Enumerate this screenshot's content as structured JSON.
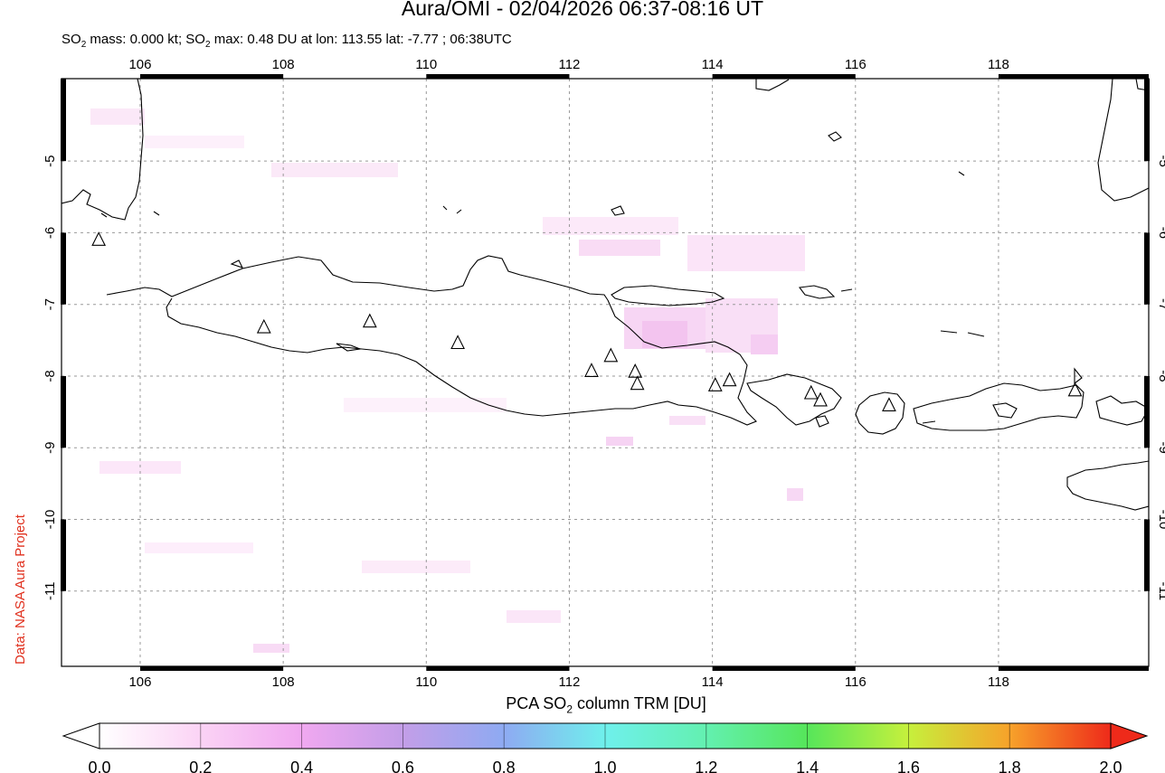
{
  "header": {
    "title": "Aura/OMI - 02/04/2026 06:37-08:16 UT",
    "subtitle_parts": {
      "so2": "SO",
      "sub2": "2",
      "mass_text": " mass: 0.000 kt; SO",
      "sub2b": "2",
      "max_text": " max: 0.48 DU at lon: 113.55 lat: -7.77 ; 06:38UTC"
    }
  },
  "credit": "Data: NASA Aura Project",
  "map": {
    "lon_range": [
      104.9,
      120.1
    ],
    "lat_range": [
      -12.05,
      -3.85
    ],
    "lon_ticks": [
      "106",
      "108",
      "110",
      "112",
      "114",
      "116",
      "118"
    ],
    "lon_tick_values": [
      106,
      108,
      110,
      112,
      114,
      116,
      118
    ],
    "lat_ticks": [
      "-5",
      "-6",
      "-7",
      "-8",
      "-9",
      "-10",
      "-11"
    ],
    "lat_tick_values": [
      -5,
      -6,
      -7,
      -8,
      -9,
      -10,
      -11
    ],
    "volcanoes": [
      {
        "lon": 105.42,
        "lat": -6.1
      },
      {
        "lon": 107.73,
        "lat": -7.32
      },
      {
        "lon": 109.21,
        "lat": -7.24
      },
      {
        "lon": 110.44,
        "lat": -7.54
      },
      {
        "lon": 112.31,
        "lat": -7.93
      },
      {
        "lon": 112.58,
        "lat": -7.72
      },
      {
        "lon": 112.92,
        "lat": -7.94
      },
      {
        "lon": 112.95,
        "lat": -8.11
      },
      {
        "lon": 114.04,
        "lat": -8.13
      },
      {
        "lon": 114.24,
        "lat": -8.06
      },
      {
        "lon": 115.38,
        "lat": -8.24
      },
      {
        "lon": 115.51,
        "lat": -8.34
      },
      {
        "lon": 116.47,
        "lat": -8.41
      },
      {
        "lon": 119.07,
        "lat": -8.2
      }
    ],
    "so2_max": {
      "lon": 113.55,
      "lat": -7.77,
      "value": 0.48
    },
    "colors": {
      "frame": "#000000",
      "grid": "#999999",
      "coast": "#000000",
      "so2_low": "#fbe6f7",
      "so2_mid": "#f3c4ef"
    }
  },
  "colorbar": {
    "title_pre": "PCA SO",
    "title_sub": "2",
    "title_post": " column TRM [DU]",
    "ticks": [
      "0.0",
      "0.2",
      "0.4",
      "0.6",
      "0.8",
      "1.0",
      "1.2",
      "1.4",
      "1.6",
      "1.8",
      "2.0"
    ],
    "range": [
      0.0,
      2.0
    ],
    "stops": [
      {
        "v": 0.0,
        "c": "#ffffff"
      },
      {
        "v": 0.2,
        "c": "#fbd3f5"
      },
      {
        "v": 0.4,
        "c": "#f0a8f0"
      },
      {
        "v": 0.6,
        "c": "#c39ee8"
      },
      {
        "v": 0.8,
        "c": "#8eaaf2"
      },
      {
        "v": 1.0,
        "c": "#6ff0ec"
      },
      {
        "v": 1.2,
        "c": "#63f0b0"
      },
      {
        "v": 1.4,
        "c": "#56e65a"
      },
      {
        "v": 1.6,
        "c": "#c6f03c"
      },
      {
        "v": 1.8,
        "c": "#f7a22a"
      },
      {
        "v": 2.0,
        "c": "#ee2a1a"
      }
    ]
  }
}
